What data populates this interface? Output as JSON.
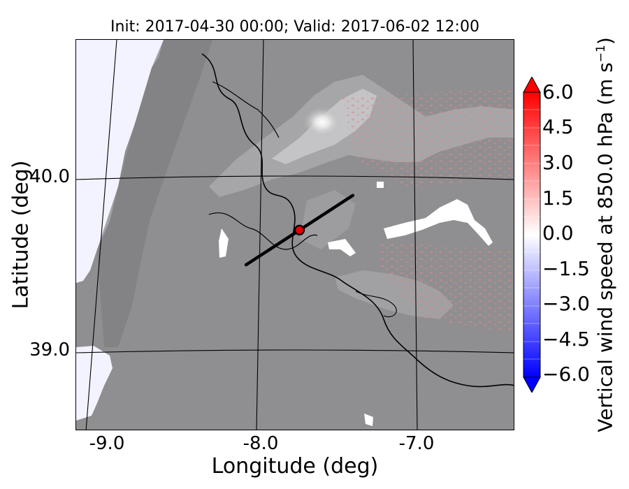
{
  "map": {
    "title": "Init: 2017-04-30 00:00; Valid: 2017-06-02 12:00",
    "xlabel": "Longitude (deg)",
    "ylabel": "Latitude (deg)",
    "x_ticks": [
      "-9.0",
      "-8.0",
      "-7.0"
    ],
    "y_ticks": [
      "40.0",
      "39.0"
    ],
    "cross_section": {
      "start": [
        -8.1,
        39.5
      ],
      "end": [
        -7.4,
        39.9
      ],
      "marker": [
        -7.75,
        39.7
      ]
    },
    "colors": {
      "terrain_base": "#8f8e91",
      "terrain_light": "#c9c8ca",
      "ocean": "#f3f3ff",
      "marker_fill": "#e00000",
      "cross_line": "#000000"
    }
  },
  "colorbar": {
    "label": "Vertical wind speed at 850.0 hPa (m s",
    "label_exp": "−1",
    "label_close": ")",
    "ticks": [
      "6.0",
      "4.5",
      "3.0",
      "1.5",
      "0.0",
      "−1.5",
      "−3.0",
      "−4.5",
      "−6.0"
    ],
    "vmin": -6.0,
    "vmax": 6.0,
    "colors": {
      "max": "#ff0000",
      "zero": "#ffffff",
      "min": "#0000ff"
    }
  }
}
